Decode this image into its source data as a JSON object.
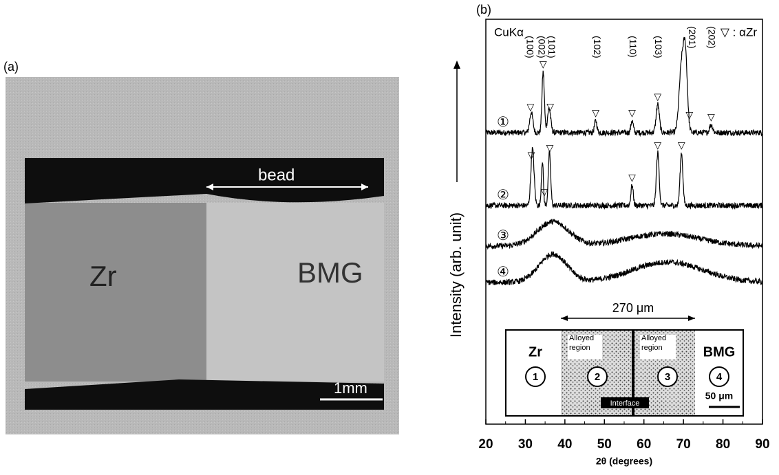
{
  "panel_a": {
    "label": "(a)",
    "zr": "Zr",
    "bmg": "BMG",
    "bead": "bead",
    "scale": "1mm"
  },
  "panel_b": {
    "label": "(b)",
    "radiation": "CuKα",
    "legend": "▽ : αZr",
    "y_label": "Intensity (arb. unit)",
    "x_label": "2θ (degrees)",
    "xlim": [
      20,
      90
    ],
    "xticks": [
      20,
      30,
      40,
      50,
      60,
      70,
      80,
      90
    ],
    "ylim": [
      0,
      100
    ],
    "peak_labels": [
      {
        "x": 31,
        "label": "(100)"
      },
      {
        "x": 34,
        "label": "(002)"
      },
      {
        "x": 36.5,
        "label": "(101)"
      },
      {
        "x": 48,
        "label": "(102)"
      },
      {
        "x": 57,
        "label": "(110)"
      },
      {
        "x": 63.5,
        "label": "(103)"
      },
      {
        "x": 72,
        "label": "(201)"
      },
      {
        "x": 77,
        "label": "(202)"
      }
    ],
    "patterns": [
      {
        "label": "①",
        "base": 72,
        "peaks": [
          [
            31.5,
            5,
            0.4
          ],
          [
            34.5,
            15,
            0.3
          ],
          [
            36,
            6,
            0.4
          ],
          [
            47.8,
            3,
            0.3
          ],
          [
            57,
            3,
            0.3
          ],
          [
            63.5,
            7,
            0.4
          ],
          [
            69.5,
            16,
            0.6
          ],
          [
            70.5,
            18,
            0.5
          ],
          [
            77,
            2,
            0.4
          ]
        ],
        "markers": [
          31.3,
          34.5,
          36.3,
          47.8,
          57,
          63.5,
          71.5,
          77
        ]
      },
      {
        "label": "②",
        "base": 54,
        "peaks": [
          [
            31.8,
            14,
            0.4
          ],
          [
            34.3,
            11,
            0.25
          ],
          [
            36.1,
            13,
            0.3
          ],
          [
            57,
            5,
            0.3
          ],
          [
            63.5,
            13,
            0.35
          ],
          [
            69.5,
            13,
            0.35
          ]
        ],
        "markers": [
          31.5,
          34.8,
          36.2,
          57,
          63.5,
          69.5
        ]
      },
      {
        "label": "③",
        "base": 44,
        "peaks": [
          [
            37,
            6,
            4
          ],
          [
            65,
            3,
            9
          ]
        ],
        "markers": []
      },
      {
        "label": "④",
        "base": 35,
        "peaks": [
          [
            37,
            7,
            3.5
          ],
          [
            66,
            5,
            9
          ]
        ],
        "markers": []
      }
    ],
    "inset": {
      "width_label": "270 μm",
      "zr": "Zr",
      "alloyed_left": "Alloyed region",
      "alloyed_right": "Alloyed region",
      "bmg": "BMG",
      "interface": "Interface",
      "scale": "50 μm",
      "positions": [
        "1",
        "2",
        "3",
        "4"
      ]
    }
  }
}
